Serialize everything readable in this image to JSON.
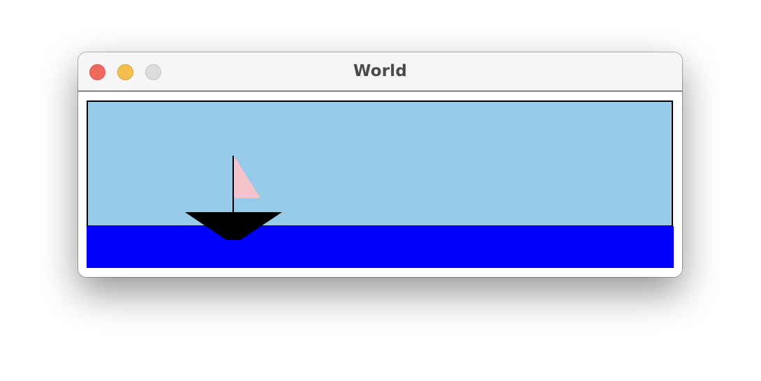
{
  "window": {
    "title": "World"
  },
  "scene": {
    "sky_color": "#97cbe8",
    "water_color": "#0000ff",
    "frame_color": "#000000",
    "boat": {
      "hull_color": "#000000",
      "mast_color": "#000000",
      "sail_color": "#f4c2cb"
    }
  }
}
